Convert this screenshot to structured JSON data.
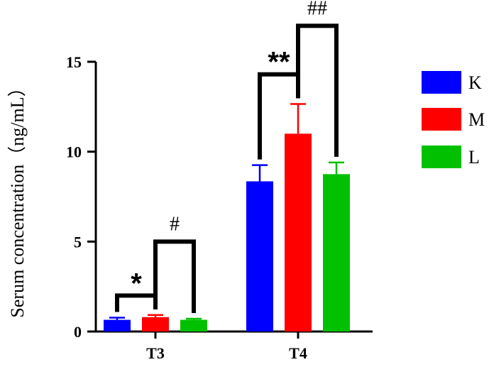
{
  "chart_data": {
    "type": "bar",
    "title": "",
    "xlabel": "",
    "ylabel": "Serum concentration（ng/mL）",
    "ylim": [
      0,
      15
    ],
    "yticks": [
      0,
      5,
      10,
      15
    ],
    "ytick_labels": [
      "0",
      "5",
      "10",
      "15"
    ],
    "categories": [
      "T3",
      "T4"
    ],
    "series": [
      {
        "name": "K",
        "color": "#0000ff",
        "values": [
          0.65,
          8.35
        ],
        "errors": [
          0.12,
          0.9
        ]
      },
      {
        "name": "M",
        "color": "#ff0000",
        "values": [
          0.8,
          11.0
        ],
        "errors": [
          0.12,
          1.65
        ]
      },
      {
        "name": "L",
        "color": "#00c000",
        "values": [
          0.65,
          8.75
        ],
        "errors": [
          0.06,
          0.65
        ]
      }
    ],
    "legend_position": "right",
    "grid": false,
    "annotations": [
      {
        "label": "*",
        "style": "star",
        "category": 0,
        "from": 0,
        "to": 1,
        "bracket_y": 2.0
      },
      {
        "label": "#",
        "style": "hash",
        "category": 0,
        "from": 1,
        "to": 2,
        "bracket_y": 5.0
      },
      {
        "label": "**",
        "style": "star",
        "category": 1,
        "from": 0,
        "to": 1,
        "bracket_y": 14.3
      },
      {
        "label": "##",
        "style": "hash",
        "category": 1,
        "from": 1,
        "to": 2,
        "bracket_y": 17.0
      }
    ]
  }
}
